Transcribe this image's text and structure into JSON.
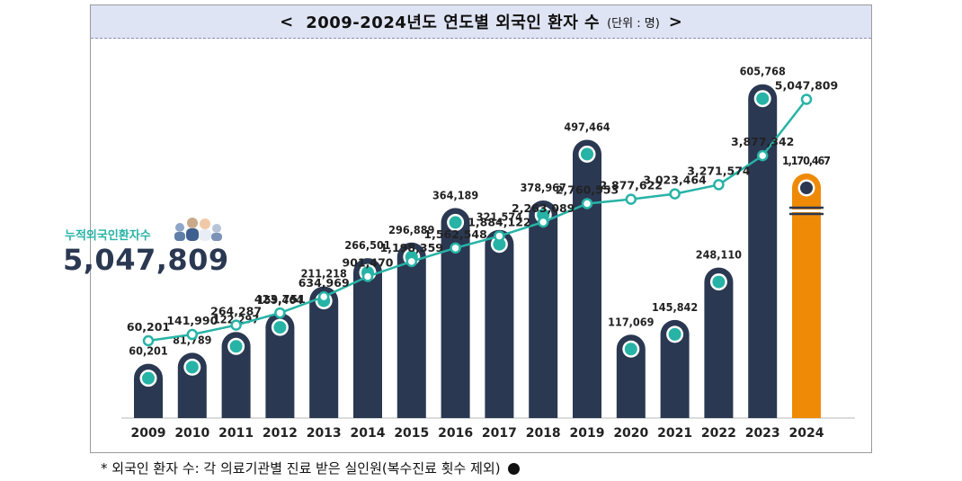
{
  "header": {
    "open_bracket": "<",
    "title": "2009-2024년도 연도별 외국인 환자 수",
    "unit": "(단위 : 명)",
    "close_bracket": ">"
  },
  "cumulative": {
    "label": "누적외국인환자수",
    "value": "5,047,809"
  },
  "footnote": {
    "text": "* 외국인 환자 수: 각 의료기관별 진료 받은 실인원(복수진료 횟수 제외)"
  },
  "colors": {
    "bar": "#2b3852",
    "bar_highlight": "#ef8a07",
    "line": "#27b3a6",
    "marker_fill": "#ffffff",
    "inner_dot": "#27b3a6",
    "title_bg": "#dfe4f4"
  },
  "chart_data": {
    "type": "bar+line",
    "title": "2009-2024년도 연도별 외국인 환자 수",
    "unit": "명",
    "categories": [
      "2009",
      "2010",
      "2011",
      "2012",
      "2013",
      "2014",
      "2015",
      "2016",
      "2017",
      "2018",
      "2019",
      "2020",
      "2021",
      "2022",
      "2023",
      "2024"
    ],
    "series": [
      {
        "name": "연도별 외국인 환자 수",
        "type": "bar",
        "values": [
          60201,
          81789,
          122297,
          159464,
          211218,
          266501,
          296889,
          364189,
          321574,
          378967,
          497464,
          117069,
          145842,
          248110,
          605768,
          1170467
        ],
        "labels": [
          "60,201",
          "81,789",
          "122,297",
          "159,464",
          "211,218",
          "266,501",
          "296,889",
          "364,189",
          "321,574",
          "378,967",
          "497,464",
          "117,069",
          "145,842",
          "248,110",
          "605,768",
          "1,170,467"
        ],
        "axis_break_on": "2024"
      },
      {
        "name": "누적외국인환자수",
        "type": "line",
        "values": [
          60201,
          141990,
          264287,
          423751,
          634969,
          901470,
          1198359,
          1562548,
          1884122,
          2263089,
          2760553,
          2877622,
          3023464,
          3271574,
          3877342,
          5047809
        ],
        "labels": [
          "60,201",
          "141,990",
          "264,287",
          "423,751",
          "634,969",
          "901,470",
          "1,198,359",
          "1,562,548",
          "1,884,122",
          "2,263,089",
          "2,760,553",
          "2,877,622",
          "3,023,464",
          "3,271,574",
          "3,877,342",
          "5,047,809"
        ]
      }
    ],
    "grid": false,
    "legend": "none"
  }
}
